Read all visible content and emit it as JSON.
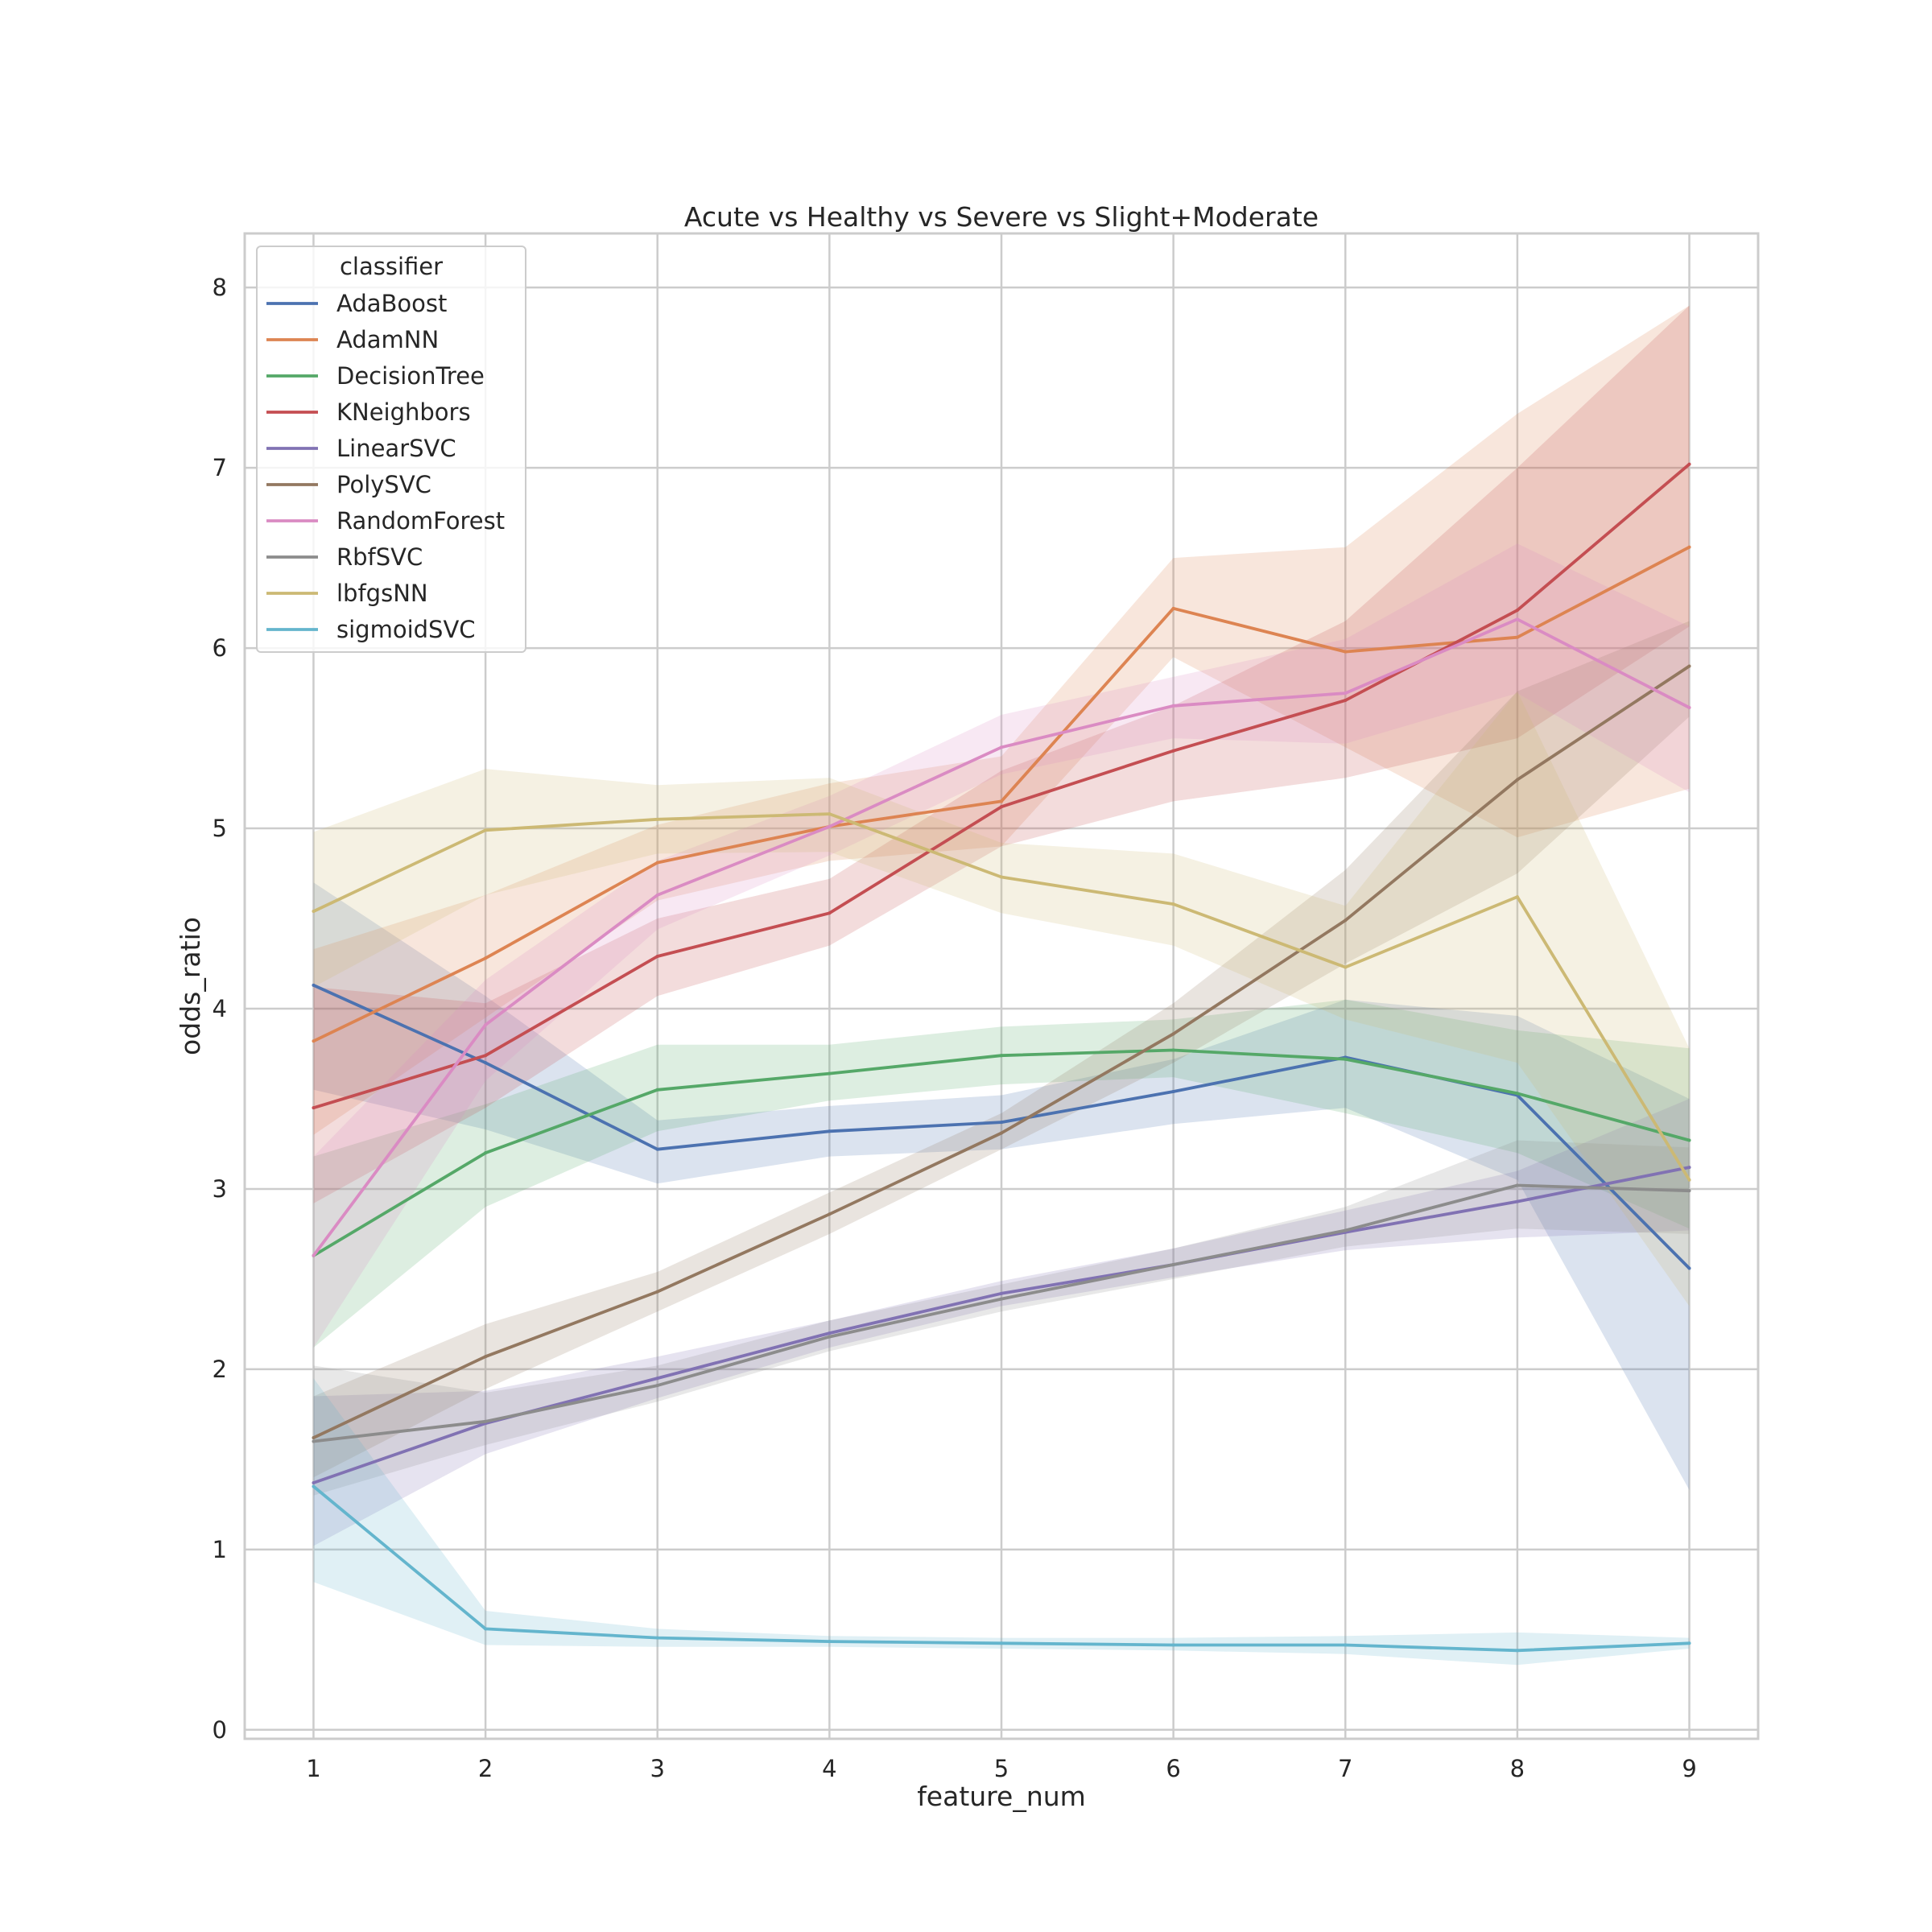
{
  "chart_data": {
    "type": "line",
    "title": "Acute vs Healthy vs Severe vs Slight+Moderate",
    "xlabel": "feature_num",
    "ylabel": "odds_ratio",
    "x": [
      1,
      2,
      3,
      4,
      5,
      6,
      7,
      8,
      9
    ],
    "xlim": [
      0.6,
      9.4
    ],
    "ylim": [
      -0.05,
      8.3
    ],
    "xticks": [
      "1",
      "2",
      "3",
      "4",
      "5",
      "6",
      "7",
      "8",
      "9"
    ],
    "yticks": [
      "0",
      "1",
      "2",
      "3",
      "4",
      "5",
      "6",
      "7",
      "8"
    ],
    "grid": true,
    "legend": {
      "title": "classifier",
      "placement": "top-left"
    },
    "series": [
      {
        "name": "AdaBoost",
        "color": "#4c72b0",
        "values": [
          4.13,
          3.7,
          3.22,
          3.32,
          3.37,
          3.54,
          3.73,
          3.52,
          2.56
        ],
        "lower": [
          3.55,
          3.33,
          3.03,
          3.18,
          3.22,
          3.36,
          3.45,
          3.05,
          1.33
        ],
        "upper": [
          4.7,
          4.07,
          3.38,
          3.46,
          3.52,
          3.72,
          4.05,
          3.96,
          3.5
        ]
      },
      {
        "name": "AdamNN",
        "color": "#dd8452",
        "values": [
          3.82,
          4.28,
          4.81,
          5.01,
          5.15,
          6.22,
          5.98,
          6.06,
          6.56
        ],
        "lower": [
          3.3,
          3.95,
          4.6,
          4.82,
          4.9,
          5.95,
          5.45,
          4.95,
          5.22
        ],
        "upper": [
          4.33,
          4.63,
          5.02,
          5.25,
          5.4,
          6.5,
          6.56,
          7.3,
          7.9
        ]
      },
      {
        "name": "DecisionTree",
        "color": "#55a868",
        "values": [
          2.63,
          3.2,
          3.55,
          3.64,
          3.74,
          3.77,
          3.72,
          3.53,
          3.27
        ],
        "lower": [
          2.12,
          2.9,
          3.32,
          3.49,
          3.58,
          3.62,
          3.42,
          3.2,
          2.78
        ],
        "upper": [
          3.18,
          3.47,
          3.8,
          3.8,
          3.9,
          3.94,
          4.05,
          3.88,
          3.78
        ]
      },
      {
        "name": "KNeighbors",
        "color": "#c44e52",
        "values": [
          3.45,
          3.74,
          4.29,
          4.53,
          5.12,
          5.43,
          5.71,
          6.21,
          7.02
        ],
        "lower": [
          2.92,
          3.45,
          4.07,
          4.35,
          4.9,
          5.15,
          5.28,
          5.5,
          6.12
        ],
        "upper": [
          4.12,
          4.03,
          4.5,
          4.72,
          5.32,
          5.68,
          6.15,
          7.0,
          7.9
        ]
      },
      {
        "name": "LinearSVC",
        "color": "#8172b3",
        "values": [
          1.37,
          1.7,
          1.95,
          2.2,
          2.42,
          2.58,
          2.76,
          2.93,
          3.12
        ],
        "lower": [
          1.02,
          1.53,
          1.84,
          2.12,
          2.35,
          2.51,
          2.66,
          2.73,
          2.77
        ],
        "upper": [
          1.85,
          1.88,
          2.07,
          2.27,
          2.49,
          2.67,
          2.88,
          3.1,
          3.5
        ]
      },
      {
        "name": "PolySVC",
        "color": "#937860",
        "values": [
          1.62,
          2.07,
          2.43,
          2.86,
          3.31,
          3.86,
          4.49,
          5.27,
          5.9
        ],
        "lower": [
          1.4,
          1.89,
          2.32,
          2.75,
          3.22,
          3.7,
          4.25,
          4.75,
          5.62
        ],
        "upper": [
          1.85,
          2.25,
          2.54,
          2.98,
          3.42,
          4.03,
          4.77,
          5.76,
          6.15
        ]
      },
      {
        "name": "RandomForest",
        "color": "#da8bc3",
        "values": [
          2.63,
          3.91,
          4.63,
          5.01,
          5.45,
          5.68,
          5.75,
          6.16,
          5.67
        ],
        "lower": [
          2.12,
          3.6,
          4.44,
          4.85,
          5.3,
          5.5,
          5.47,
          5.75,
          5.2
        ],
        "upper": [
          3.18,
          4.16,
          4.82,
          5.18,
          5.63,
          5.84,
          6.05,
          6.58,
          6.12
        ]
      },
      {
        "name": "RbfSVC",
        "color": "#8c8c8c",
        "values": [
          1.6,
          1.71,
          1.91,
          2.18,
          2.39,
          2.58,
          2.77,
          3.02,
          2.99
        ],
        "lower": [
          1.3,
          1.58,
          1.82,
          2.1,
          2.32,
          2.5,
          2.68,
          2.78,
          2.75
        ],
        "upper": [
          2.02,
          1.87,
          2.02,
          2.27,
          2.47,
          2.67,
          2.9,
          3.27,
          3.23
        ]
      },
      {
        "name": "lbfgsNN",
        "color": "#ccb974",
        "values": [
          4.54,
          4.99,
          5.05,
          5.08,
          4.73,
          4.58,
          4.23,
          4.62,
          3.05
        ],
        "lower": [
          4.12,
          4.63,
          4.86,
          4.87,
          4.53,
          4.35,
          3.94,
          3.7,
          2.35
        ],
        "upper": [
          4.98,
          5.33,
          5.24,
          5.28,
          4.92,
          4.86,
          4.57,
          5.76,
          3.78
        ]
      },
      {
        "name": "sigmoidSVC",
        "color": "#64b5cd",
        "values": [
          1.35,
          0.56,
          0.51,
          0.49,
          0.48,
          0.47,
          0.47,
          0.44,
          0.48
        ],
        "lower": [
          0.82,
          0.47,
          0.46,
          0.46,
          0.45,
          0.44,
          0.42,
          0.36,
          0.45
        ],
        "upper": [
          1.95,
          0.66,
          0.56,
          0.52,
          0.51,
          0.51,
          0.52,
          0.54,
          0.51
        ]
      }
    ]
  }
}
